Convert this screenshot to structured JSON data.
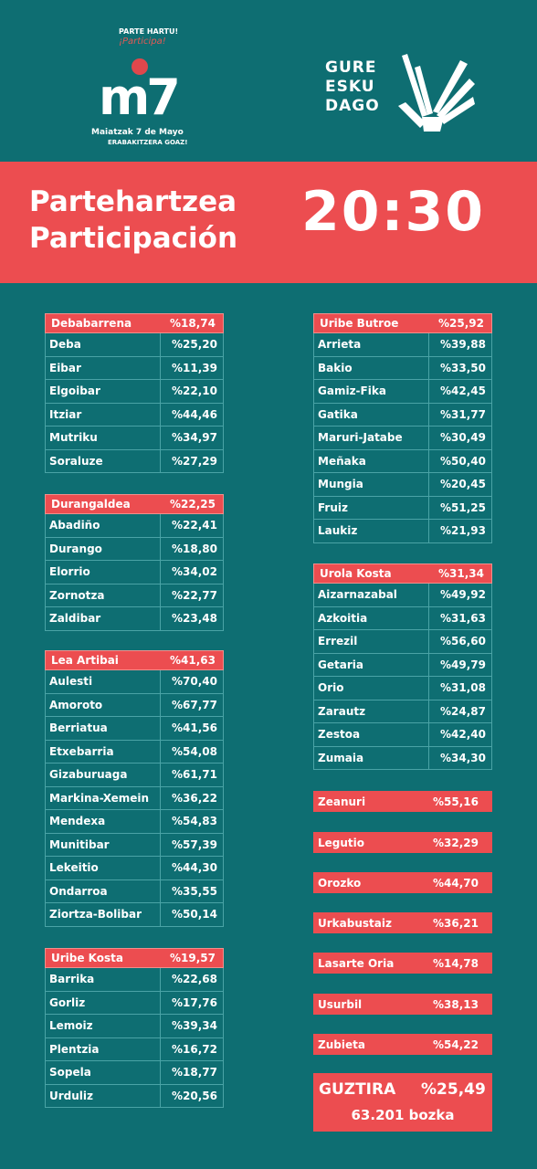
{
  "header": {
    "m7": {
      "top1": "PARTE HARTU!",
      "top2": "¡Participa!",
      "big": "m7",
      "date": "Maiatzak 7 de Mayo",
      "slogan": "ERABAKITZERA GOAZ!"
    },
    "gure": {
      "text": "GURE ESKU DAGO"
    }
  },
  "banner": {
    "line1": "Partehartzea",
    "line2": "Participación",
    "time": "20:30"
  },
  "left_groups": [
    {
      "name": "Debabarrena",
      "value": "%18,74",
      "rows": [
        [
          "Deba",
          "%25,20"
        ],
        [
          "Eibar",
          "%11,39"
        ],
        [
          "Elgoibar",
          "%22,10"
        ],
        [
          "Itziar",
          "%44,46"
        ],
        [
          "Mutriku",
          "%34,97"
        ],
        [
          "Soraluze",
          "%27,29"
        ]
      ]
    },
    {
      "name": "Durangaldea",
      "value": "%22,25",
      "rows": [
        [
          "Abadiño",
          "%22,41"
        ],
        [
          "Durango",
          "%18,80"
        ],
        [
          "Elorrio",
          "%34,02"
        ],
        [
          "Zornotza",
          "%22,77"
        ],
        [
          "Zaldibar",
          "%23,48"
        ]
      ]
    },
    {
      "name": "Lea Artibai",
      "value": "%41,63",
      "rows": [
        [
          "Aulesti",
          "%70,40"
        ],
        [
          "Amoroto",
          "%67,77"
        ],
        [
          "Berriatua",
          "%41,56"
        ],
        [
          "Etxebarria",
          "%54,08"
        ],
        [
          "Gizaburuaga",
          "%61,71"
        ],
        [
          "Markina-Xemein",
          "%36,22"
        ],
        [
          "Mendexa",
          "%54,83"
        ],
        [
          "Munitibar",
          "%57,39"
        ],
        [
          "Lekeitio",
          "%44,30"
        ],
        [
          "Ondarroa",
          "%35,55"
        ],
        [
          "Ziortza-Bolibar",
          "%50,14"
        ]
      ]
    },
    {
      "name": "Uribe Kosta",
      "value": "%19,57",
      "rows": [
        [
          "Barrika",
          "%22,68"
        ],
        [
          "Gorliz",
          "%17,76"
        ],
        [
          "Lemoiz",
          "%39,34"
        ],
        [
          "Plentzia",
          "%16,72"
        ],
        [
          "Sopela",
          "%18,77"
        ],
        [
          "Urduliz",
          "%20,56"
        ]
      ]
    }
  ],
  "right_groups": [
    {
      "name": "Uribe Butroe",
      "value": "%25,92",
      "rows": [
        [
          "Arrieta",
          "%39,88"
        ],
        [
          "Bakio",
          "%33,50"
        ],
        [
          "Gamiz-Fika",
          "%42,45"
        ],
        [
          "Gatika",
          "%31,77"
        ],
        [
          "Maruri-Jatabe",
          "%30,49"
        ],
        [
          "Meñaka",
          "%50,40"
        ],
        [
          "Mungia",
          "%20,45"
        ],
        [
          "Fruiz",
          "%51,25"
        ],
        [
          "Laukiz",
          "%21,93"
        ]
      ]
    },
    {
      "name": "Urola Kosta",
      "value": "%31,34",
      "rows": [
        [
          "Aizarnazabal",
          "%49,92"
        ],
        [
          "Azkoitia",
          "%31,63"
        ],
        [
          "Errezil",
          "%56,60"
        ],
        [
          "Getaria",
          "%49,79"
        ],
        [
          "Orio",
          "%31,08"
        ],
        [
          "Zarautz",
          "%24,87"
        ],
        [
          "Zestoa",
          "%42,40"
        ],
        [
          "Zumaia",
          "%34,30"
        ]
      ]
    }
  ],
  "singles": [
    [
      "Zeanuri",
      "%55,16"
    ],
    [
      "Legutio",
      "%32,29"
    ],
    [
      "Orozko",
      "%44,70"
    ],
    [
      "Urkabustaiz",
      "%36,21"
    ],
    [
      "Lasarte Oria",
      "%14,78"
    ],
    [
      "Usurbil",
      "%38,13"
    ],
    [
      "Zubieta",
      "%54,22"
    ]
  ],
  "total": {
    "label": "GUZTIRA",
    "value": "%25,49",
    "votes": "63.201 bozka"
  },
  "colors": {
    "background": "#0e6e72",
    "accent": "#ec4d50"
  }
}
